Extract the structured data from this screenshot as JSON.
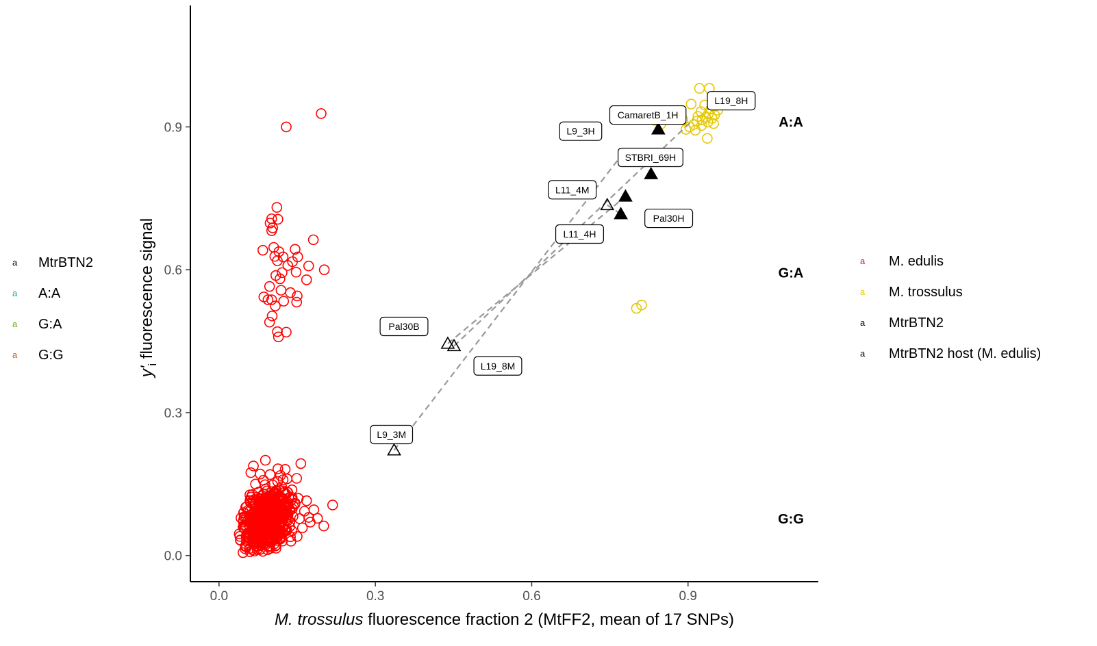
{
  "chart_data": {
    "type": "scatter",
    "title": "",
    "xlabel": {
      "italic": "M. trossulus",
      "rest": " fluorescence fraction 2 (MtFF2, mean of 17 SNPs)"
    },
    "ylabel": {
      "main": "y'",
      "sub": "i",
      "rest": " fluorescence signal"
    },
    "xlim": [
      -0.055,
      1.15
    ],
    "ylim": [
      -0.055,
      1.155
    ],
    "x_ticks": [
      {
        "value": 0.0,
        "label": "0.0"
      },
      {
        "value": 0.3,
        "label": "0.3"
      },
      {
        "value": 0.6,
        "label": "0.6"
      },
      {
        "value": 0.9,
        "label": "0.9"
      }
    ],
    "y_ticks": [
      {
        "value": 0.0,
        "label": "0.0"
      },
      {
        "value": 0.3,
        "label": "0.3"
      },
      {
        "value": 0.6,
        "label": "0.6"
      },
      {
        "value": 0.9,
        "label": "0.9"
      }
    ],
    "grid": false,
    "region_labels": [
      {
        "text": "A:A",
        "y": 0.911
      },
      {
        "text": "G:A",
        "y": 0.594
      },
      {
        "text": "G:G",
        "y": 0.077
      }
    ],
    "left_legend": {
      "placement": "left",
      "entries": [
        {
          "key": "a",
          "label": "MtrBTN2",
          "color": "#000000"
        },
        {
          "key": "a",
          "label": "A:A",
          "color": "#1b9e9e"
        },
        {
          "key": "a",
          "label": "G:A",
          "color": "#66a61e"
        },
        {
          "key": "a",
          "label": "G:G",
          "color": "#d95f02"
        }
      ]
    },
    "right_legend": {
      "placement": "right",
      "entries": [
        {
          "key": "a",
          "label": "M. edulis",
          "color": "#ff0000"
        },
        {
          "key": "a",
          "label": "M. trossulus",
          "color": "#e6c800"
        },
        {
          "key": "a",
          "label": "MtrBTN2",
          "color": "#000000"
        },
        {
          "key": "a",
          "label": "MtrBTN2 host (M. edulis)",
          "color": "#000000"
        }
      ]
    },
    "series": [
      {
        "name": "M. edulis",
        "color": "#ff0000",
        "marker": "open-circle",
        "description": "dense G:G cluster near (0.05–0.20, 0.0–0.20) plus G:A cluster and outliers",
        "points": [
          [
            0.196,
            0.928
          ],
          [
            0.129,
            0.9
          ],
          [
            0.111,
            0.731
          ],
          [
            0.101,
            0.707
          ],
          [
            0.113,
            0.706
          ],
          [
            0.098,
            0.698
          ],
          [
            0.103,
            0.688
          ],
          [
            0.101,
            0.682
          ],
          [
            0.181,
            0.663
          ],
          [
            0.084,
            0.641
          ],
          [
            0.105,
            0.647
          ],
          [
            0.115,
            0.638
          ],
          [
            0.146,
            0.643
          ],
          [
            0.107,
            0.628
          ],
          [
            0.123,
            0.627
          ],
          [
            0.151,
            0.627
          ],
          [
            0.112,
            0.619
          ],
          [
            0.141,
            0.617
          ],
          [
            0.132,
            0.609
          ],
          [
            0.172,
            0.608
          ],
          [
            0.202,
            0.6
          ],
          [
            0.121,
            0.594
          ],
          [
            0.148,
            0.595
          ],
          [
            0.109,
            0.588
          ],
          [
            0.117,
            0.581
          ],
          [
            0.168,
            0.579
          ],
          [
            0.097,
            0.565
          ],
          [
            0.119,
            0.557
          ],
          [
            0.137,
            0.552
          ],
          [
            0.15,
            0.545
          ],
          [
            0.086,
            0.543
          ],
          [
            0.094,
            0.537
          ],
          [
            0.101,
            0.537
          ],
          [
            0.124,
            0.534
          ],
          [
            0.149,
            0.532
          ],
          [
            0.108,
            0.524
          ],
          [
            0.102,
            0.503
          ],
          [
            0.097,
            0.49
          ],
          [
            0.112,
            0.47
          ],
          [
            0.129,
            0.469
          ],
          [
            0.114,
            0.459
          ],
          [
            0.218,
            0.106
          ],
          [
            0.201,
            0.062
          ],
          [
            0.189,
            0.078
          ],
          [
            0.182,
            0.096
          ],
          [
            0.172,
            0.08
          ],
          [
            0.164,
            0.093
          ],
          [
            0.157,
            0.193
          ],
          [
            0.149,
            0.162
          ],
          [
            0.127,
            0.181
          ],
          [
            0.113,
            0.182
          ],
          [
            0.089,
            0.2
          ],
          [
            0.066,
            0.188
          ],
          [
            0.061,
            0.174
          ],
          [
            0.079,
            0.171
          ],
          [
            0.098,
            0.17
          ],
          [
            0.118,
            0.168
          ],
          [
            0.123,
            0.159
          ],
          [
            0.14,
            0.138
          ],
          [
            0.152,
            0.12
          ],
          [
            0.146,
            0.11
          ],
          [
            0.168,
            0.115
          ],
          [
            0.131,
            0.133
          ],
          [
            0.07,
            0.15
          ],
          [
            0.085,
            0.158
          ],
          [
            0.15,
            0.04
          ],
          [
            0.138,
            0.03
          ],
          [
            0.12,
            0.04
          ],
          [
            0.108,
            0.02
          ],
          [
            0.088,
            0.025
          ],
          [
            0.072,
            0.02
          ],
          [
            0.053,
            0.018
          ],
          [
            0.046,
            0.006
          ],
          [
            0.064,
            0.012
          ],
          [
            0.041,
            0.032
          ],
          [
            0.047,
            0.058
          ],
          [
            0.093,
            0.012
          ],
          [
            0.16,
            0.058
          ],
          [
            0.175,
            0.07
          ],
          [
            0.14,
            0.052
          ],
          [
            0.052,
            0.08
          ],
          [
            0.056,
            0.095
          ],
          [
            0.06,
            0.115
          ],
          [
            0.064,
            0.128
          ],
          [
            0.09,
            0.14
          ],
          [
            0.11,
            0.128
          ],
          [
            0.103,
            0.148
          ],
          [
            0.076,
            0.133
          ],
          [
            0.13,
            0.092
          ],
          [
            0.142,
            0.082
          ],
          [
            0.136,
            0.071
          ],
          [
            0.125,
            0.062
          ],
          [
            0.118,
            0.053
          ],
          [
            0.082,
            0.047
          ],
          [
            0.071,
            0.044
          ],
          [
            0.061,
            0.041
          ],
          [
            0.095,
            0.05
          ]
        ]
      },
      {
        "name": "M. trossulus",
        "color": "#e6c800",
        "marker": "open-circle",
        "points": [
          [
            0.922,
            0.981
          ],
          [
            0.941,
            0.981
          ],
          [
            0.906,
            0.948
          ],
          [
            0.975,
            0.95
          ],
          [
            0.932,
            0.946
          ],
          [
            0.944,
            0.938
          ],
          [
            0.957,
            0.935
          ],
          [
            0.925,
            0.932
          ],
          [
            0.939,
            0.927
          ],
          [
            0.951,
            0.925
          ],
          [
            0.919,
            0.922
          ],
          [
            0.934,
            0.92
          ],
          [
            0.946,
            0.918
          ],
          [
            0.927,
            0.915
          ],
          [
            0.917,
            0.912
          ],
          [
            0.938,
            0.91
          ],
          [
            0.949,
            0.907
          ],
          [
            0.911,
            0.905
          ],
          [
            0.926,
            0.903
          ],
          [
            0.903,
            0.9
          ],
          [
            0.896,
            0.895
          ],
          [
            0.914,
            0.893
          ],
          [
            0.89,
            0.915
          ],
          [
            0.937,
            0.876
          ],
          [
            0.836,
            0.914
          ],
          [
            0.848,
            0.906
          ],
          [
            0.801,
            0.519
          ],
          [
            0.811,
            0.526
          ]
        ]
      },
      {
        "name": "MtrBTN2",
        "color": "#000000",
        "marker": "open-triangle",
        "points": [
          {
            "x": 0.336,
            "y": 0.221,
            "label": "L9_3M"
          },
          {
            "x": 0.439,
            "y": 0.445,
            "label": "Pal30B"
          },
          {
            "x": 0.451,
            "y": 0.44,
            "label": "L19_8M"
          },
          {
            "x": 0.745,
            "y": 0.736,
            "label": "L11_4M"
          }
        ]
      },
      {
        "name": "MtrBTN2 host (M. edulis)",
        "color": "#000000",
        "marker": "filled-triangle",
        "points": [
          {
            "x": 0.771,
            "y": 0.717,
            "label": "L11_4H"
          },
          {
            "x": 0.78,
            "y": 0.754,
            "label": "Pal30H"
          },
          {
            "x": 0.829,
            "y": 0.801,
            "label": "STBRI_69H"
          },
          {
            "x": 0.843,
            "y": 0.895,
            "label": "CamaretB_1H"
          },
          {
            "x": 0.91,
            "y": 0.915,
            "label": "L19_8H"
          },
          {
            "x": 0.779,
            "y": 0.85,
            "label": "L9_3H"
          }
        ]
      }
    ],
    "links": [
      {
        "from": [
          0.336,
          0.221
        ],
        "to": [
          0.779,
          0.85
        ]
      },
      {
        "from": [
          0.439,
          0.445
        ],
        "to": [
          0.78,
          0.754
        ]
      },
      {
        "from": [
          0.451,
          0.44
        ],
        "to": [
          0.91,
          0.915
        ]
      },
      {
        "from": [
          0.745,
          0.736
        ],
        "to": [
          0.771,
          0.717
        ]
      }
    ],
    "callouts": [
      {
        "text": "L9_3M",
        "x": 0.331,
        "y": 0.254
      },
      {
        "text": "Pal30B",
        "x": 0.355,
        "y": 0.481
      },
      {
        "text": "L19_8M",
        "x": 0.535,
        "y": 0.398
      },
      {
        "text": "L11_4M",
        "x": 0.678,
        "y": 0.768
      },
      {
        "text": "L11_4H",
        "x": 0.692,
        "y": 0.675
      },
      {
        "text": "Pal30H",
        "x": 0.863,
        "y": 0.708
      },
      {
        "text": "STBRI_69H",
        "x": 0.828,
        "y": 0.836
      },
      {
        "text": "CamaretB_1H",
        "x": 0.823,
        "y": 0.925
      },
      {
        "text": "L9_3H",
        "x": 0.694,
        "y": 0.891
      },
      {
        "text": "L19_8H",
        "x": 0.983,
        "y": 0.955
      }
    ]
  }
}
